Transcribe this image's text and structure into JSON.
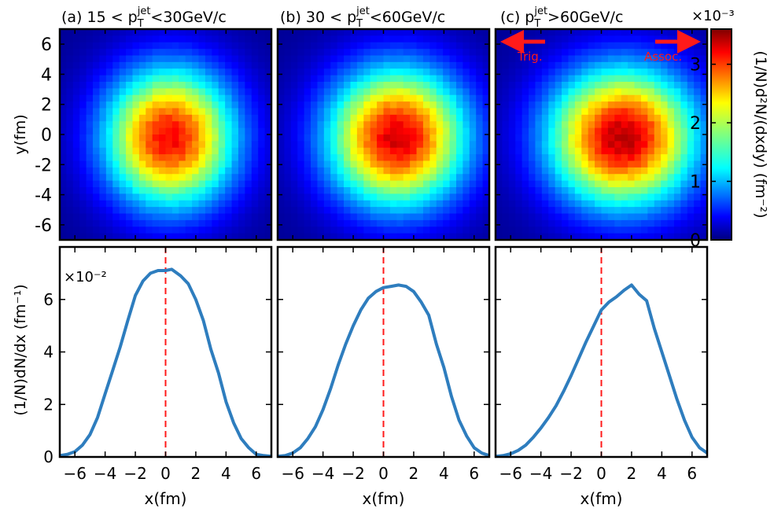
{
  "panels": [
    {
      "label_prefix": "(a) 15 < p",
      "label_suffix": "<30GeV/c"
    },
    {
      "label_prefix": "(b) 30 < p",
      "label_suffix": "<60GeV/c"
    },
    {
      "label_prefix": "(c) p",
      "label_suffix": ">60GeV/c"
    }
  ],
  "pt_sub": "T",
  "pt_sup": "jet",
  "heatmap": {
    "ylabel": "y(fm)",
    "yticks": [
      "6",
      "4",
      "2",
      "0",
      "-2",
      "-4",
      "-6"
    ],
    "colorbar_label": "(1/N)d²N/(dxdy) (fm⁻²)",
    "colorbar_exponent": "×10⁻³",
    "colorbar_ticks": [
      "0",
      "1",
      "2",
      "3"
    ],
    "colormap": "jet",
    "arrow_left": "Trig.",
    "arrow_right": "Assoc.",
    "arrow_color": "#ff1a1a"
  },
  "chart_data": [
    {
      "type": "line",
      "panel": "a",
      "x": [
        -7,
        -6.5,
        -6,
        -5.5,
        -5,
        -4.5,
        -4,
        -3.5,
        -3,
        -2.5,
        -2,
        -1.5,
        -1,
        -0.5,
        0,
        0.4,
        1,
        1.5,
        2,
        2.5,
        3,
        3.5,
        4,
        4.5,
        5,
        5.5,
        6,
        6.5,
        7
      ],
      "y": [
        0.05,
        0.1,
        0.2,
        0.45,
        0.85,
        1.5,
        2.4,
        3.3,
        4.2,
        5.2,
        6.15,
        6.7,
        7.0,
        7.1,
        7.1,
        7.15,
        6.9,
        6.6,
        6.0,
        5.2,
        4.1,
        3.2,
        2.1,
        1.3,
        0.7,
        0.35,
        0.1,
        0.05,
        0.02
      ],
      "xlim": [
        -7,
        7
      ],
      "ylim": [
        0,
        8
      ],
      "ylabel": "(1/N)dN/dx (fm⁻¹)",
      "xlabel": "x(fm)",
      "exponent": "×10⁻²",
      "color": "#2e7dbe",
      "ref_line_x": 0
    },
    {
      "type": "line",
      "panel": "b",
      "x": [
        -7,
        -6.5,
        -6,
        -5.5,
        -5,
        -4.5,
        -4,
        -3.5,
        -3,
        -2.5,
        -2,
        -1.5,
        -1,
        -0.5,
        0,
        0.5,
        1,
        1.5,
        2,
        2.5,
        3,
        3.5,
        4,
        4.5,
        5,
        5.5,
        6,
        6.5,
        7
      ],
      "y": [
        0.02,
        0.05,
        0.15,
        0.35,
        0.7,
        1.15,
        1.8,
        2.6,
        3.5,
        4.3,
        5.0,
        5.6,
        6.05,
        6.3,
        6.45,
        6.5,
        6.55,
        6.5,
        6.3,
        5.9,
        5.4,
        4.3,
        3.4,
        2.3,
        1.4,
        0.8,
        0.35,
        0.15,
        0.05
      ],
      "xlim": [
        -7,
        7
      ],
      "ylim": [
        0,
        8
      ],
      "xlabel": "x(fm)",
      "color": "#2e7dbe",
      "ref_line_x": 0
    },
    {
      "type": "line",
      "panel": "c",
      "x": [
        -7,
        -6.5,
        -6,
        -5.5,
        -5,
        -4.5,
        -4,
        -3.5,
        -3,
        -2.5,
        -2,
        -1.5,
        -1,
        -0.5,
        0,
        0.5,
        1,
        1.5,
        2,
        2.5,
        3,
        3.5,
        4,
        4.5,
        5,
        5.5,
        6,
        6.5,
        7
      ],
      "y": [
        0.02,
        0.05,
        0.12,
        0.25,
        0.45,
        0.75,
        1.1,
        1.5,
        1.95,
        2.5,
        3.1,
        3.75,
        4.4,
        5.0,
        5.6,
        5.9,
        6.1,
        6.35,
        6.55,
        6.2,
        5.95,
        4.9,
        4.0,
        3.1,
        2.2,
        1.4,
        0.75,
        0.35,
        0.15
      ],
      "xlim": [
        -7,
        7
      ],
      "ylim": [
        0,
        8
      ],
      "xlabel": "x(fm)",
      "color": "#2e7dbe",
      "ref_line_x": 0
    }
  ],
  "xticks": [
    "−6",
    "−4",
    "−2",
    "0",
    "2",
    "4",
    "6"
  ],
  "xtick_values": [
    -6,
    -4,
    -2,
    0,
    2,
    4,
    6
  ],
  "yticks_bottom": [
    "0",
    "2",
    "4",
    "6"
  ],
  "yticks_bottom_values": [
    0,
    2,
    4,
    6
  ]
}
